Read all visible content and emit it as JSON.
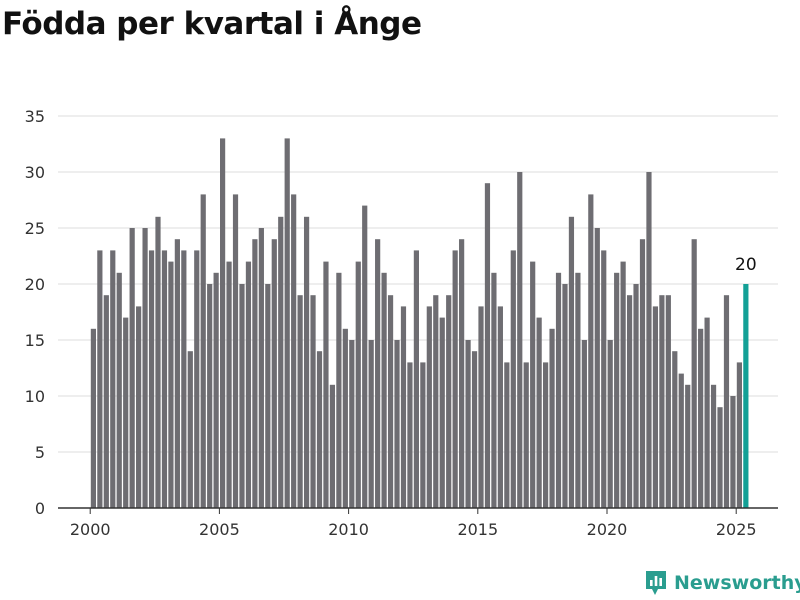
{
  "title": "Födda per kvartal i Ånge",
  "brand": {
    "name": "Newsworthy",
    "color": "#2a9d8f"
  },
  "colors": {
    "bar": "#6e6d72",
    "highlight": "#13a096",
    "grid": "#dddddd",
    "axis": "#333333",
    "text": "#333333"
  },
  "chart_data": {
    "type": "bar",
    "title": "Födda per kvartal i Ånge",
    "xlabel": "",
    "ylabel": "",
    "ylim": [
      0,
      35
    ],
    "yticks": [
      0,
      5,
      10,
      15,
      20,
      25,
      30,
      35
    ],
    "xticks": [
      2000,
      2005,
      2010,
      2015,
      2020,
      2025
    ],
    "grid": true,
    "start": "2000Q1",
    "categories": [
      "2000Q1",
      "2000Q2",
      "2000Q3",
      "2000Q4",
      "2001Q1",
      "2001Q2",
      "2001Q3",
      "2001Q4",
      "2002Q1",
      "2002Q2",
      "2002Q3",
      "2002Q4",
      "2003Q1",
      "2003Q2",
      "2003Q3",
      "2003Q4",
      "2004Q1",
      "2004Q2",
      "2004Q3",
      "2004Q4",
      "2005Q1",
      "2005Q2",
      "2005Q3",
      "2005Q4",
      "2006Q1",
      "2006Q2",
      "2006Q3",
      "2006Q4",
      "2007Q1",
      "2007Q2",
      "2007Q3",
      "2007Q4",
      "2008Q1",
      "2008Q2",
      "2008Q3",
      "2008Q4",
      "2009Q1",
      "2009Q2",
      "2009Q3",
      "2009Q4",
      "2010Q1",
      "2010Q2",
      "2010Q3",
      "2010Q4",
      "2011Q1",
      "2011Q2",
      "2011Q3",
      "2011Q4",
      "2012Q1",
      "2012Q2",
      "2012Q3",
      "2012Q4",
      "2013Q1",
      "2013Q2",
      "2013Q3",
      "2013Q4",
      "2014Q1",
      "2014Q2",
      "2014Q3",
      "2014Q4",
      "2015Q1",
      "2015Q2",
      "2015Q3",
      "2015Q4",
      "2016Q1",
      "2016Q2",
      "2016Q3",
      "2016Q4",
      "2017Q1",
      "2017Q2",
      "2017Q3",
      "2017Q4",
      "2018Q1",
      "2018Q2",
      "2018Q3",
      "2018Q4",
      "2019Q1",
      "2019Q2",
      "2019Q3",
      "2019Q4",
      "2020Q1",
      "2020Q2",
      "2020Q3",
      "2020Q4",
      "2021Q1",
      "2021Q2",
      "2021Q3",
      "2021Q4",
      "2022Q1",
      "2022Q2",
      "2022Q3",
      "2022Q4",
      "2023Q1",
      "2023Q2",
      "2023Q3",
      "2023Q4",
      "2024Q1",
      "2024Q2",
      "2024Q3",
      "2024Q4",
      "2025Q1",
      "2025Q2"
    ],
    "values": [
      16,
      23,
      19,
      23,
      21,
      17,
      25,
      18,
      25,
      23,
      26,
      23,
      22,
      24,
      23,
      14,
      23,
      28,
      20,
      21,
      33,
      22,
      28,
      20,
      22,
      24,
      25,
      20,
      24,
      26,
      33,
      28,
      19,
      26,
      19,
      14,
      22,
      11,
      21,
      16,
      15,
      22,
      27,
      15,
      24,
      21,
      19,
      15,
      18,
      13,
      23,
      13,
      18,
      19,
      17,
      19,
      23,
      24,
      15,
      14,
      18,
      29,
      21,
      18,
      13,
      23,
      30,
      13,
      22,
      17,
      13,
      16,
      21,
      20,
      26,
      21,
      15,
      28,
      25,
      23,
      15,
      21,
      22,
      19,
      20,
      24,
      30,
      18,
      19,
      19,
      14,
      12,
      11,
      24,
      16,
      17,
      11,
      9,
      19,
      10,
      13,
      20
    ],
    "highlight_index": 101,
    "annotation": {
      "text": "20",
      "category": "2025Q2"
    }
  }
}
